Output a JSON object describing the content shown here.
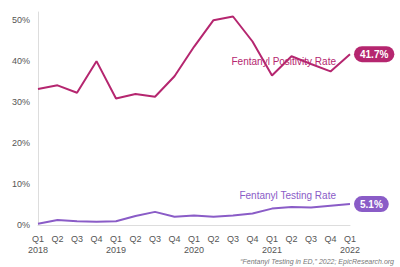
{
  "chart_data": {
    "type": "line",
    "categories": [
      "Q1\n2018",
      "Q2",
      "Q3",
      "Q4",
      "Q1\n2019",
      "Q2",
      "Q3",
      "Q4",
      "Q1\n2020",
      "Q2",
      "Q3",
      "Q4",
      "Q1\n2021",
      "Q2",
      "Q3",
      "Q4",
      "Q1\n2022"
    ],
    "series": [
      {
        "name": "Fentanyl Positivity Rate",
        "color": "#b5266f",
        "values": [
          33.2,
          34.1,
          32.3,
          40.0,
          30.9,
          32.0,
          31.3,
          36.3,
          43.5,
          50.0,
          50.9,
          44.8,
          36.5,
          41.2,
          39.3,
          37.5,
          41.7
        ],
        "value_labels": [
          null,
          null,
          null,
          null,
          null,
          null,
          null,
          null,
          null,
          null,
          null,
          null,
          null,
          null,
          null,
          null,
          "41.7%"
        ]
      },
      {
        "name": "Fentanyl Testing Rate",
        "color": "#8a5cc7",
        "values": [
          0.3,
          1.2,
          0.9,
          0.8,
          0.9,
          2.2,
          3.2,
          2.0,
          2.3,
          2.0,
          2.3,
          2.8,
          4.0,
          4.4,
          4.3,
          4.7,
          5.1
        ],
        "value_labels": [
          null,
          null,
          null,
          null,
          null,
          null,
          null,
          null,
          null,
          null,
          null,
          null,
          null,
          null,
          null,
          null,
          "5.1%"
        ]
      }
    ],
    "ylim": [
      0,
      52
    ],
    "yticks": [
      {
        "value": 0,
        "label": "0%"
      },
      {
        "value": 10,
        "label": "10%"
      },
      {
        "value": 20,
        "label": "20%"
      },
      {
        "value": 30,
        "label": "30%"
      },
      {
        "value": 40,
        "label": "40%"
      },
      {
        "value": 50,
        "label": "50%"
      }
    ],
    "grid": false,
    "annotations": [
      "“Fentanyl Testing in ED,” 2022; EpicResearch.org"
    ]
  }
}
